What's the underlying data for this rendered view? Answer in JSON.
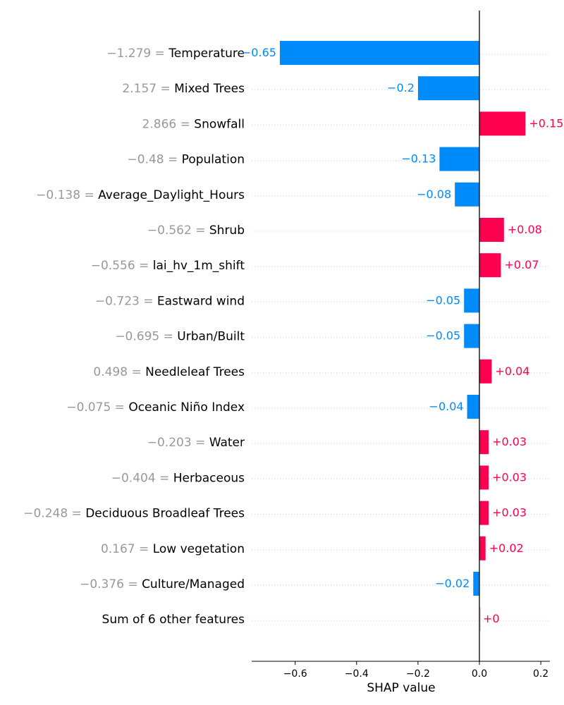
{
  "chart_data": {
    "type": "bar",
    "title": "",
    "xlabel": "SHAP value",
    "ylabel": "",
    "xlim": [
      -0.74,
      0.24
    ],
    "xticks": [
      {
        "value": -0.6,
        "label": "−0.6"
      },
      {
        "value": -0.4,
        "label": "−0.4"
      },
      {
        "value": -0.2,
        "label": "−0.2"
      },
      {
        "value": 0.0,
        "label": "0.0"
      },
      {
        "value": 0.2,
        "label": "0.2"
      }
    ],
    "positive_color": "#ff0051",
    "negative_color": "#008bfb",
    "zero_color": "#ffc3d5",
    "features": [
      {
        "feature_value": "−1.279",
        "name": "Temperature",
        "shap": -0.65,
        "label": "−0.65"
      },
      {
        "feature_value": "2.157",
        "name": "Mixed Trees",
        "shap": -0.2,
        "label": "−0.2"
      },
      {
        "feature_value": "2.866",
        "name": "Snowfall",
        "shap": 0.15,
        "label": "+0.15"
      },
      {
        "feature_value": "−0.48",
        "name": "Population",
        "shap": -0.13,
        "label": "−0.13"
      },
      {
        "feature_value": "−0.138",
        "name": "Average_Daylight_Hours",
        "shap": -0.08,
        "label": "−0.08"
      },
      {
        "feature_value": "−0.562",
        "name": "Shrub",
        "shap": 0.08,
        "label": "+0.08"
      },
      {
        "feature_value": "−0.556",
        "name": "lai_hv_1m_shift",
        "shap": 0.07,
        "label": "+0.07"
      },
      {
        "feature_value": "−0.723",
        "name": "Eastward wind",
        "shap": -0.05,
        "label": "−0.05"
      },
      {
        "feature_value": "−0.695",
        "name": "Urban/Built",
        "shap": -0.05,
        "label": "−0.05"
      },
      {
        "feature_value": "0.498",
        "name": "Needleleaf Trees",
        "shap": 0.04,
        "label": "+0.04"
      },
      {
        "feature_value": "−0.075",
        "name": "Oceanic Niño Index",
        "shap": -0.04,
        "label": "−0.04"
      },
      {
        "feature_value": "−0.203",
        "name": "Water",
        "shap": 0.03,
        "label": "+0.03"
      },
      {
        "feature_value": "−0.404",
        "name": "Herbaceous",
        "shap": 0.03,
        "label": "+0.03"
      },
      {
        "feature_value": "−0.248",
        "name": "Deciduous Broadleaf Trees",
        "shap": 0.03,
        "label": "+0.03"
      },
      {
        "feature_value": "0.167",
        "name": "Low vegetation",
        "shap": 0.02,
        "label": "+0.02"
      },
      {
        "feature_value": "−0.376",
        "name": "Culture/Managed",
        "shap": -0.02,
        "label": "−0.02"
      },
      {
        "feature_value": "",
        "name": "Sum of 6 other features",
        "shap": 0.0,
        "label": "+0"
      }
    ]
  }
}
